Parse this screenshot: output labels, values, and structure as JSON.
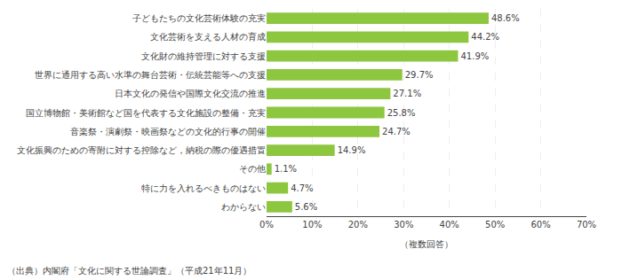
{
  "chart_data": {
    "type": "bar",
    "orientation": "horizontal",
    "categories": [
      "わからない",
      "特に力を入れるべきものはない",
      "その他",
      "文化振興のための寄附に対する控除など，納税の際の優遇措置",
      "音楽祭・演劇祭・映画祭などの文化的行事の開催",
      "国立博物館・美術館など国を代表する文化施設の整備・充実",
      "日本文化の発信や国際文化交流の推進",
      "世界に通用する高い水準の舞台芸術・伝統芸能等への支援",
      "文化財の維持管理に対する支援",
      "文化芸術を支える人材の育成",
      "子どもたちの文化芸術体験の充実"
    ],
    "values": [
      5.6,
      4.7,
      1.1,
      14.9,
      24.7,
      25.8,
      27.1,
      29.7,
      41.9,
      44.2,
      48.6
    ],
    "value_labels": [
      "5.6%",
      "4.7%",
      "1.1%",
      "14.9%",
      "24.7%",
      "25.8%",
      "27.1%",
      "29.7%",
      "41.9%",
      "44.2%",
      "48.6%"
    ],
    "data_labels": true,
    "color": "#8dc63f",
    "xlim": [
      0,
      70
    ],
    "xticks": [
      {
        "value": 0,
        "label": "0%"
      },
      {
        "value": 10,
        "label": "10%"
      },
      {
        "value": 20,
        "label": "20%"
      },
      {
        "value": 30,
        "label": "30%"
      },
      {
        "value": 40,
        "label": "40%"
      },
      {
        "value": 50,
        "label": "50%"
      },
      {
        "value": 60,
        "label": "60%"
      },
      {
        "value": 70,
        "label": "70%"
      }
    ],
    "grid": true,
    "annotations": [
      "（複数回答）",
      "（出典）内閣府「文化に関する世論調査」（平成21年11月）"
    ]
  }
}
